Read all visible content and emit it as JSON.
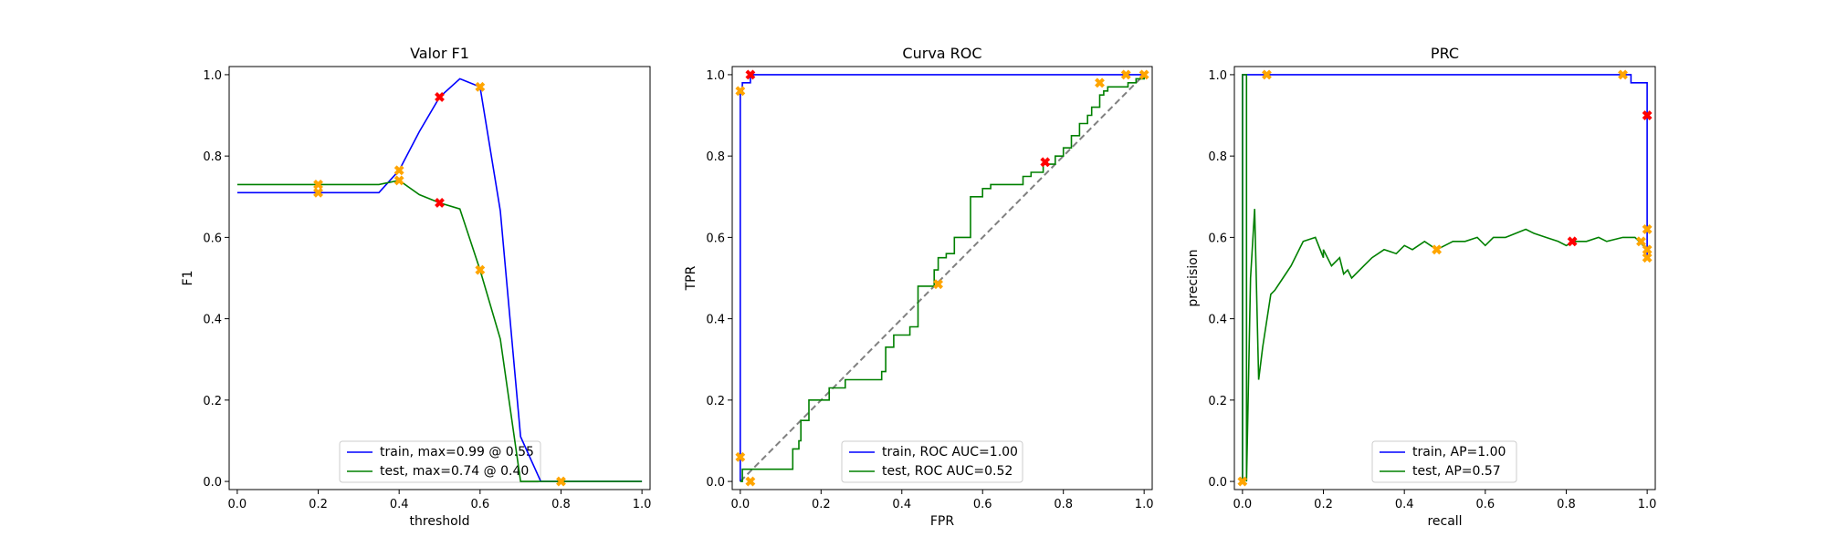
{
  "chart_data": [
    {
      "type": "line",
      "title": "Valor F1",
      "xlabel": "threshold",
      "ylabel": "F1",
      "xlim": [
        -0.02,
        1.02
      ],
      "ylim": [
        -0.02,
        1.02
      ],
      "xticks": [
        "0.0",
        "0.2",
        "0.4",
        "0.6",
        "0.8",
        "1.0"
      ],
      "yticks": [
        "0.0",
        "0.2",
        "0.4",
        "0.6",
        "0.8",
        "1.0"
      ],
      "legend": "lower-center",
      "series": [
        {
          "name": "train, max=0.99 @ 0.55",
          "color": "#0000ff",
          "x": [
            0.0,
            0.2,
            0.35,
            0.4,
            0.45,
            0.5,
            0.55,
            0.6,
            0.65,
            0.7,
            0.75,
            0.8,
            1.0
          ],
          "y": [
            0.71,
            0.71,
            0.71,
            0.765,
            0.86,
            0.945,
            0.99,
            0.97,
            0.665,
            0.11,
            0.0,
            0.0,
            0.0
          ]
        },
        {
          "name": "test, max=0.74 @ 0.40",
          "color": "#008000",
          "x": [
            0.0,
            0.2,
            0.35,
            0.4,
            0.45,
            0.5,
            0.55,
            0.6,
            0.65,
            0.7,
            0.72,
            0.8,
            1.0
          ],
          "y": [
            0.73,
            0.73,
            0.73,
            0.74,
            0.705,
            0.685,
            0.67,
            0.52,
            0.35,
            0.0,
            0.0,
            0.0,
            0.0
          ]
        }
      ],
      "markers": [
        {
          "color": "#ffa500",
          "points": [
            [
              0.2,
              0.73
            ],
            [
              0.2,
              0.71
            ],
            [
              0.4,
              0.765
            ],
            [
              0.4,
              0.74
            ],
            [
              0.6,
              0.97
            ],
            [
              0.6,
              0.52
            ],
            [
              0.8,
              0.0
            ]
          ]
        },
        {
          "color": "#ff0000",
          "points": [
            [
              0.5,
              0.945
            ],
            [
              0.5,
              0.685
            ]
          ]
        }
      ],
      "diagonal": false
    },
    {
      "type": "line",
      "title": "Curva ROC",
      "xlabel": "FPR",
      "ylabel": "TPR",
      "xlim": [
        -0.02,
        1.02
      ],
      "ylim": [
        -0.02,
        1.02
      ],
      "xticks": [
        "0.0",
        "0.2",
        "0.4",
        "0.6",
        "0.8",
        "1.0"
      ],
      "yticks": [
        "0.0",
        "0.2",
        "0.4",
        "0.6",
        "0.8",
        "1.0"
      ],
      "legend": "lower-center",
      "series": [
        {
          "name": "train, ROC AUC=1.00",
          "color": "#0000ff",
          "x": [
            0.0,
            0.0,
            0.005,
            0.005,
            0.025,
            0.025,
            1.0
          ],
          "y": [
            0.0,
            0.96,
            0.96,
            0.98,
            0.98,
            1.0,
            1.0
          ],
          "step": false
        },
        {
          "name": "test, ROC AUC=0.52",
          "color": "#008000",
          "x": [
            0.0,
            0.005,
            0.02,
            0.02,
            0.13,
            0.13,
            0.145,
            0.15,
            0.17,
            0.2,
            0.22,
            0.24,
            0.26,
            0.33,
            0.35,
            0.36,
            0.38,
            0.42,
            0.44,
            0.46,
            0.48,
            0.49,
            0.51,
            0.53,
            0.56,
            0.57,
            0.6,
            0.62,
            0.64,
            0.68,
            0.7,
            0.72,
            0.75,
            0.77,
            0.78,
            0.8,
            0.82,
            0.84,
            0.86,
            0.87,
            0.89,
            0.9,
            0.91,
            0.93,
            0.96,
            0.98,
            1.0
          ],
          "y": [
            0.0,
            0.03,
            0.03,
            0.03,
            0.03,
            0.08,
            0.1,
            0.15,
            0.2,
            0.2,
            0.23,
            0.23,
            0.25,
            0.25,
            0.27,
            0.33,
            0.36,
            0.38,
            0.48,
            0.48,
            0.52,
            0.55,
            0.56,
            0.6,
            0.6,
            0.7,
            0.72,
            0.73,
            0.73,
            0.73,
            0.75,
            0.76,
            0.78,
            0.78,
            0.8,
            0.82,
            0.85,
            0.88,
            0.9,
            0.92,
            0.95,
            0.96,
            0.97,
            0.97,
            0.98,
            0.99,
            1.0
          ],
          "step": true
        }
      ],
      "markers": [
        {
          "color": "#ffa500",
          "points": [
            [
              0.0,
              0.96
            ],
            [
              0.0,
              0.06
            ],
            [
              0.025,
              0.0
            ],
            [
              0.49,
              0.485
            ],
            [
              0.89,
              0.98
            ],
            [
              0.955,
              1.0
            ],
            [
              1.0,
              1.0
            ]
          ]
        },
        {
          "color": "#ff0000",
          "points": [
            [
              0.025,
              1.0
            ],
            [
              0.755,
              0.785
            ]
          ]
        }
      ],
      "diagonal": true
    },
    {
      "type": "line",
      "title": "PRC",
      "xlabel": "recall",
      "ylabel": "precision",
      "xlim": [
        -0.02,
        1.02
      ],
      "ylim": [
        -0.02,
        1.02
      ],
      "xticks": [
        "0.0",
        "0.2",
        "0.4",
        "0.6",
        "0.8",
        "1.0"
      ],
      "yticks": [
        "0.0",
        "0.2",
        "0.4",
        "0.6",
        "0.8",
        "1.0"
      ],
      "legend": "lower-center",
      "series": [
        {
          "name": "train, AP=1.00",
          "color": "#0000ff",
          "x": [
            0.0,
            0.0,
            0.96,
            0.96,
            1.0,
            1.0,
            1.0
          ],
          "y": [
            0.0,
            1.0,
            1.0,
            0.98,
            0.98,
            0.9,
            0.55
          ]
        },
        {
          "name": "test, AP=0.57",
          "color": "#008000",
          "x": [
            0.0,
            0.0,
            0.01,
            0.01,
            0.02,
            0.03,
            0.04,
            0.05,
            0.07,
            0.08,
            0.1,
            0.12,
            0.15,
            0.18,
            0.2,
            0.2,
            0.22,
            0.24,
            0.25,
            0.26,
            0.27,
            0.3,
            0.32,
            0.35,
            0.38,
            0.4,
            0.42,
            0.45,
            0.48,
            0.5,
            0.52,
            0.55,
            0.58,
            0.6,
            0.62,
            0.65,
            0.7,
            0.72,
            0.75,
            0.78,
            0.8,
            0.82,
            0.85,
            0.88,
            0.9,
            0.94,
            0.97,
            0.98,
            1.0
          ],
          "y": [
            0.0,
            1.0,
            1.0,
            0.0,
            0.5,
            0.67,
            0.25,
            0.33,
            0.46,
            0.47,
            0.5,
            0.53,
            0.59,
            0.6,
            0.55,
            0.57,
            0.53,
            0.55,
            0.51,
            0.52,
            0.5,
            0.53,
            0.55,
            0.57,
            0.56,
            0.58,
            0.57,
            0.59,
            0.57,
            0.58,
            0.59,
            0.59,
            0.6,
            0.58,
            0.6,
            0.6,
            0.62,
            0.61,
            0.6,
            0.59,
            0.58,
            0.59,
            0.59,
            0.6,
            0.59,
            0.6,
            0.6,
            0.59,
            0.57
          ]
        }
      ],
      "markers": [
        {
          "color": "#ffa500",
          "points": [
            [
              0.0,
              0.0
            ],
            [
              0.06,
              1.0
            ],
            [
              0.48,
              0.57
            ],
            [
              0.94,
              1.0
            ],
            [
              0.985,
              0.59
            ],
            [
              1.0,
              0.62
            ],
            [
              1.0,
              0.57
            ],
            [
              1.0,
              0.55
            ]
          ]
        },
        {
          "color": "#ff0000",
          "points": [
            [
              0.815,
              0.59
            ],
            [
              1.0,
              0.9
            ]
          ]
        }
      ],
      "diagonal": false
    }
  ]
}
